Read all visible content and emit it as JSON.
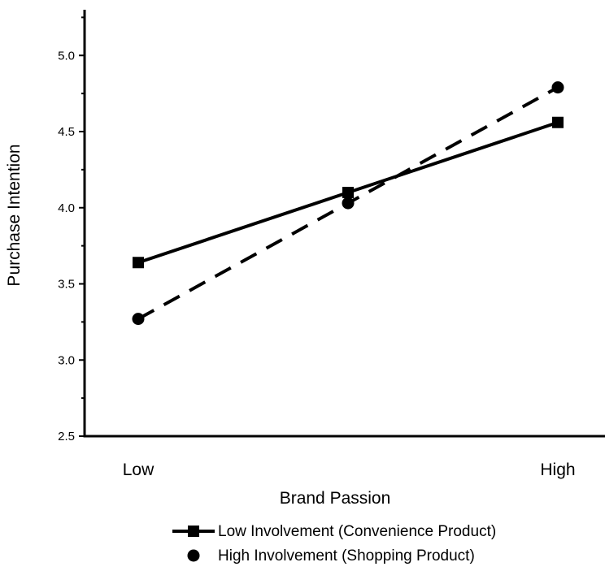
{
  "chart_data": {
    "type": "line",
    "title": "",
    "xlabel": "Brand Passion",
    "ylabel": "Purchase Intention",
    "categories": [
      "Low",
      "",
      "High"
    ],
    "ylim": [
      2.5,
      5.3
    ],
    "yticks": [
      "2.5",
      "3.0",
      "3.5",
      "4.0",
      "4.5",
      "5.0"
    ],
    "grid": false,
    "legend_position": "bottom",
    "series": [
      {
        "name": "Low Involvement (Convenience Product)",
        "marker": "square",
        "line_style": "solid",
        "values": [
          3.64,
          4.1,
          4.56
        ]
      },
      {
        "name": "High Involvement (Shopping Product)",
        "marker": "circle",
        "line_style": "dashed",
        "values": [
          3.27,
          4.03,
          4.79
        ]
      }
    ]
  }
}
